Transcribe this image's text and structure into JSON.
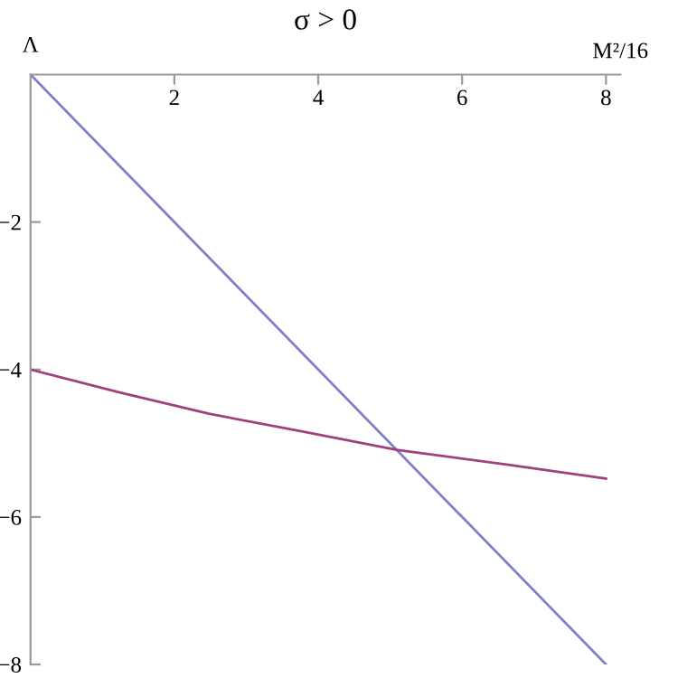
{
  "chart_data": {
    "type": "line",
    "title": "σ > 0",
    "xlabel": "M²/16",
    "ylabel": "Λ",
    "xlim": [
      0,
      8.2
    ],
    "ylim": [
      -8,
      0
    ],
    "xticks": [
      2,
      4,
      6,
      8
    ],
    "yticks": [
      -2,
      -4,
      -6,
      -8
    ],
    "grid": false,
    "legend": false,
    "series": [
      {
        "color": "#8080c8",
        "x": [
          0,
          8
        ],
        "values": [
          0,
          -8
        ]
      },
      {
        "color": "#a0407f",
        "x": [
          0,
          1.24,
          2.48,
          3.72,
          5.09,
          6.62,
          8
        ],
        "values": [
          -4,
          -4.31,
          -4.6,
          -4.83,
          -5.09,
          -5.29,
          -5.48
        ]
      }
    ]
  }
}
